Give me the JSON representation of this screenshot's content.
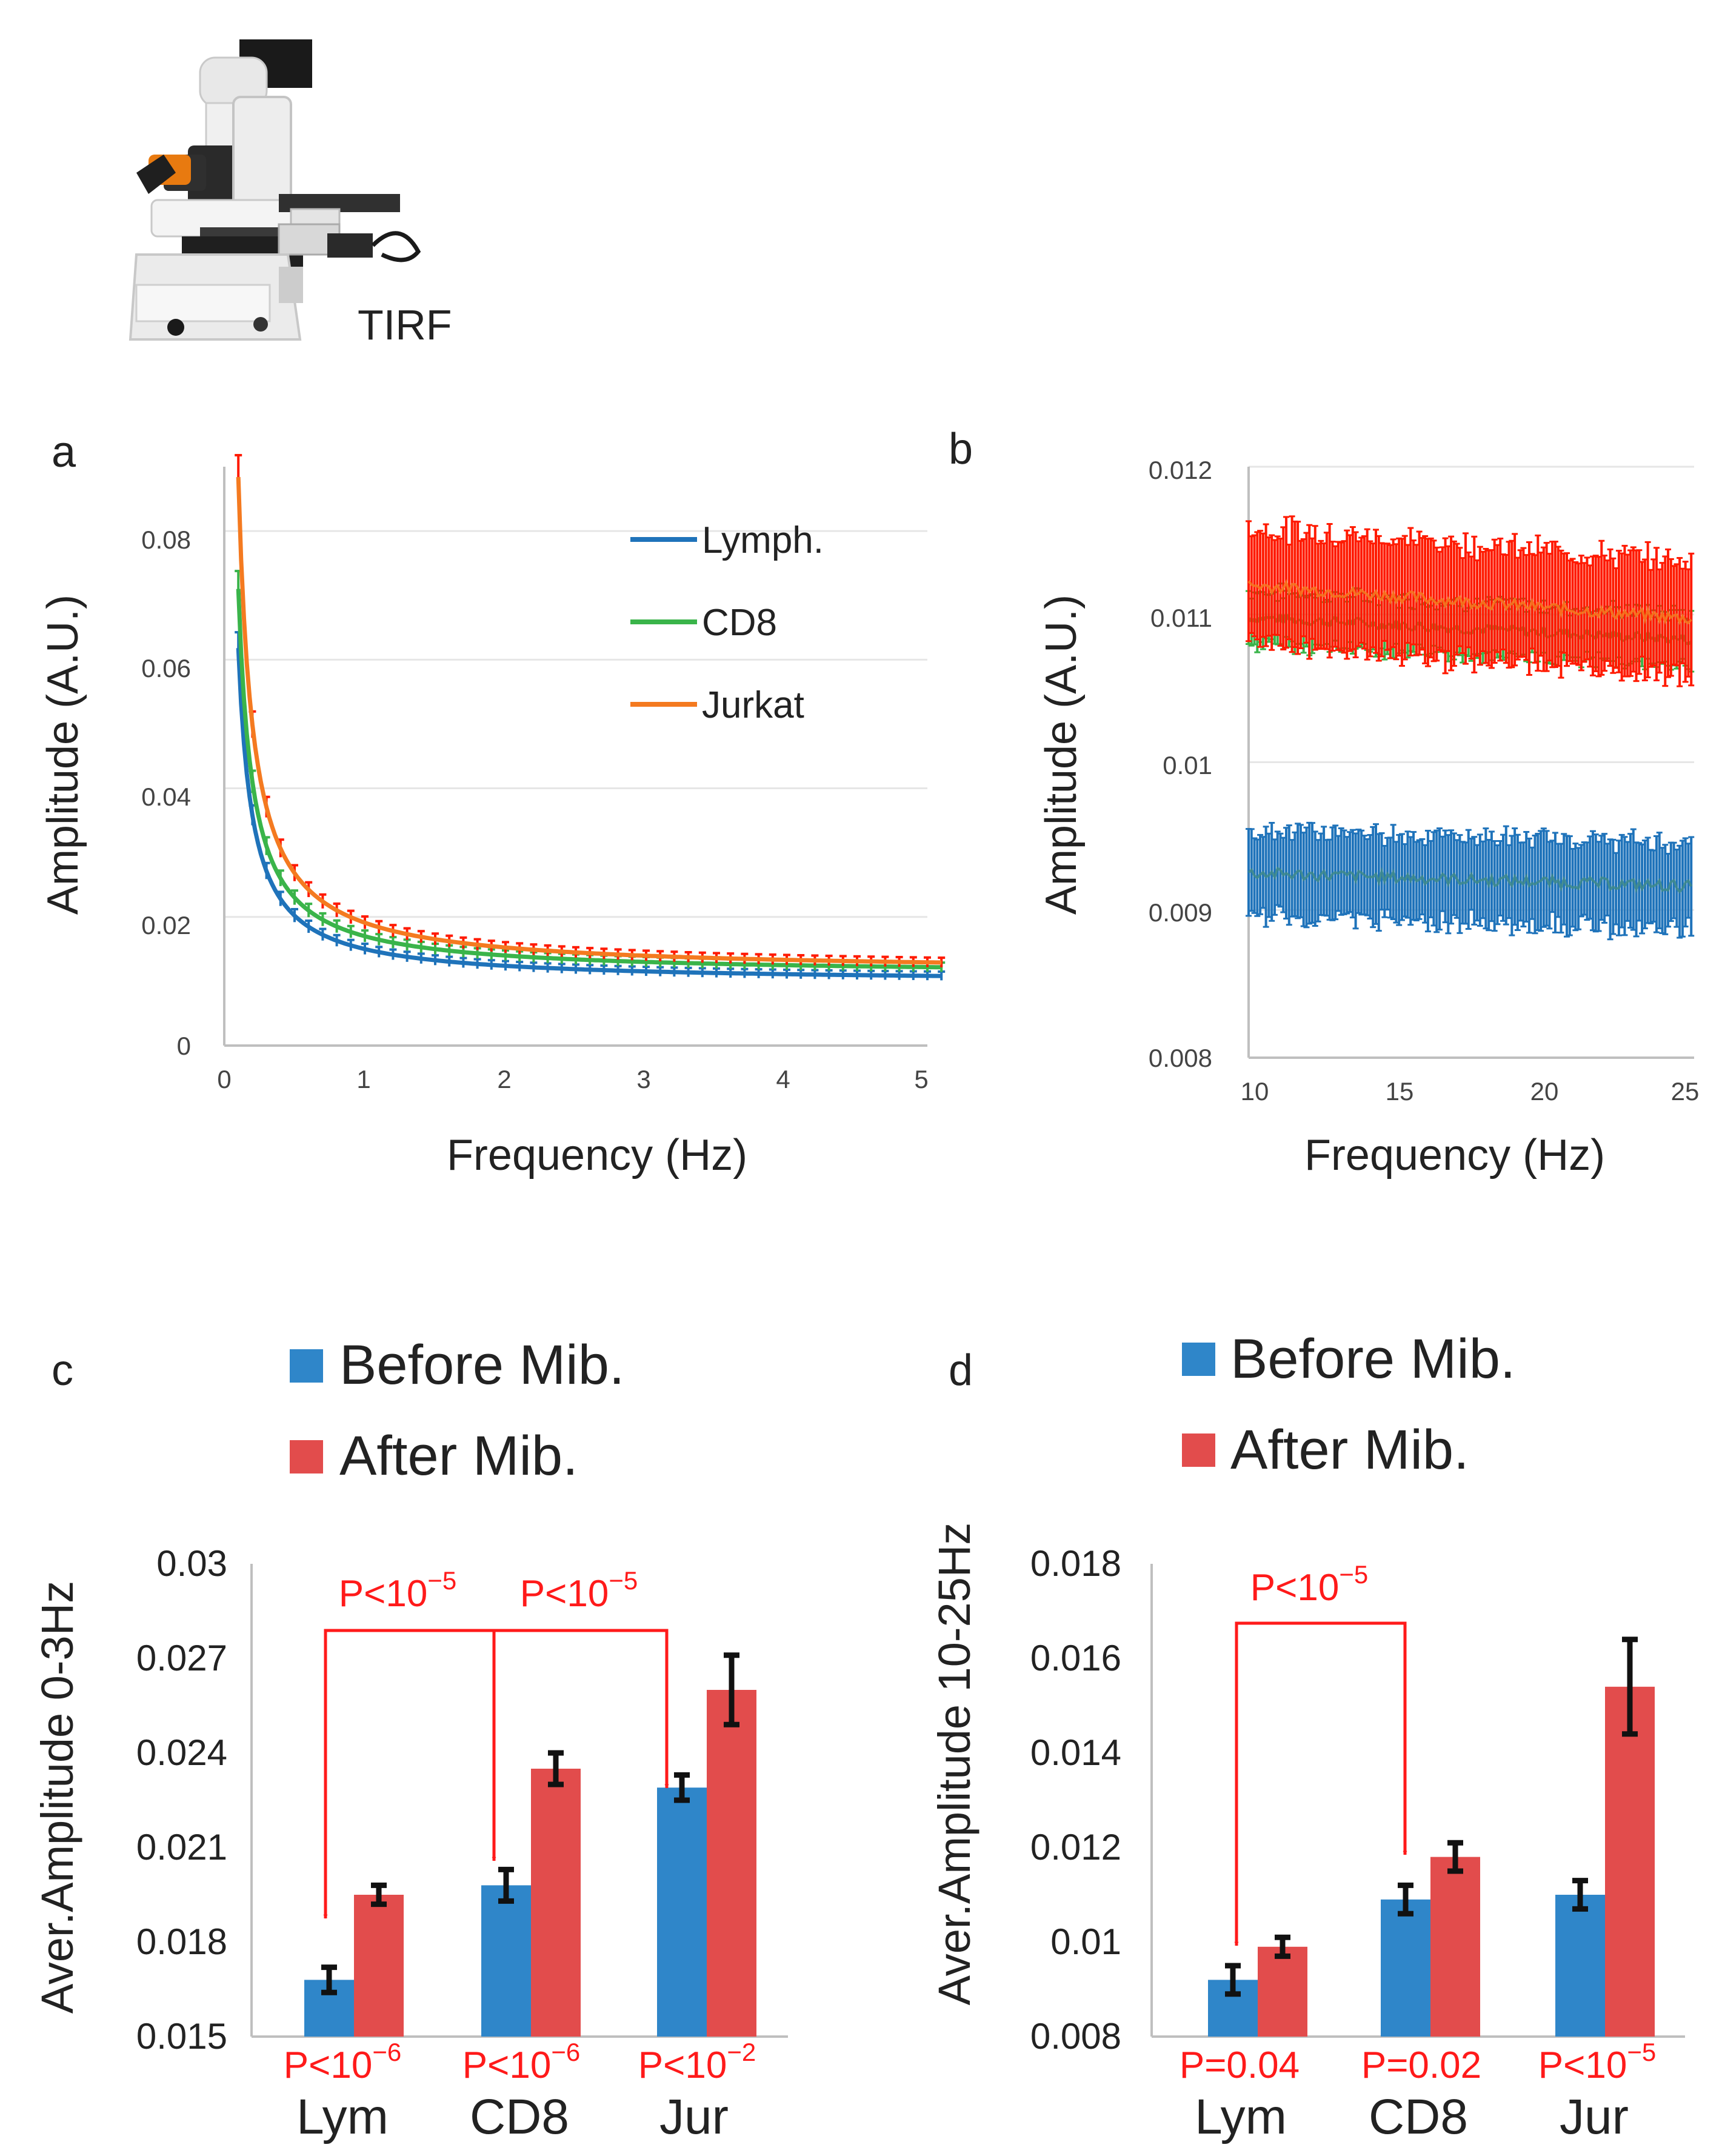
{
  "header": {
    "instrument_label": "TIRF"
  },
  "colors": {
    "lymph": "#1F73BA",
    "cd8": "#3AB44A",
    "jurkat": "#F47A20",
    "jurkat_err": "#FF1A00",
    "before": "#2F86C9",
    "after": "#E24C4C",
    "arrow": "#FF1A1A",
    "axis": "#BFBFBF",
    "text": "#222222"
  },
  "chart_data": [
    {
      "panel": "a",
      "type": "line",
      "xlabel": "Frequency (Hz)",
      "ylabel": "Amplitude (A.U.)",
      "xlim": [
        0,
        5
      ],
      "ylim": [
        0,
        0.09
      ],
      "xticks": [
        0,
        1,
        2,
        3,
        4,
        5
      ],
      "yticks": [
        0,
        0.02,
        0.04,
        0.06,
        0.08
      ],
      "ytick_labels": [
        "0",
        "0.02",
        "0.04",
        "0.06",
        "0.08"
      ],
      "legend_position": "top-right",
      "series": [
        {
          "name": "Lymph.",
          "color_key": "lymph",
          "base": 0.0098,
          "A": 0.0052
        },
        {
          "name": "CD8",
          "color_key": "cd8",
          "base": 0.011,
          "A": 0.006
        },
        {
          "name": "Jurkat",
          "color_key": "jurkat",
          "base": 0.0114,
          "A": 0.0077
        }
      ]
    },
    {
      "panel": "b",
      "type": "line",
      "xlabel": "Frequency (Hz)",
      "ylabel": "Amplitude (A.U.)",
      "xlim": [
        9.6,
        25
      ],
      "ylim": [
        0.008,
        0.012
      ],
      "xticks": [
        10,
        15,
        20,
        25
      ],
      "yticks": [
        0.008,
        0.009,
        0.01,
        0.011,
        0.012
      ],
      "ytick_labels": [
        "0.008",
        "0.009",
        "0.01",
        "0.011",
        "0.012"
      ],
      "series": [
        {
          "name": "Lymph.",
          "color_key": "lymph",
          "start": 0.00925,
          "end": 0.00916,
          "err": 0.0003
        },
        {
          "name": "CD8",
          "color_key": "cd8",
          "start": 0.01098,
          "end": 0.01083,
          "err": 0.00018
        },
        {
          "name": "Jurkat",
          "color_key": "jurkat",
          "start": 0.0112,
          "end": 0.01097,
          "err": 0.0004
        }
      ]
    },
    {
      "panel": "c",
      "type": "bar",
      "ylabel": "Aver.Amplitude 0-3Hz",
      "ylim": [
        0.015,
        0.03
      ],
      "yticks": [
        0.015,
        0.018,
        0.021,
        0.024,
        0.027,
        0.03
      ],
      "ytick_labels": [
        "0.015",
        "0.018",
        "0.021",
        "0.024",
        "0.027",
        "0.03"
      ],
      "categories": [
        "Lym",
        "CD8",
        "Jur"
      ],
      "legend": [
        "Before Mib.",
        "After Mib."
      ],
      "series": [
        {
          "name": "Before Mib.",
          "values": [
            0.0168,
            0.0198,
            0.0229
          ],
          "errors": [
            0.0004,
            0.0005,
            0.0004
          ]
        },
        {
          "name": "After Mib.",
          "values": [
            0.0195,
            0.0235,
            0.026
          ],
          "errors": [
            0.0003,
            0.0005,
            0.0011
          ]
        }
      ],
      "pair_pvalues": [
        {
          "base": "P<10",
          "exp": "−6"
        },
        {
          "base": "P<10",
          "exp": "−6"
        },
        {
          "base": "P<10",
          "exp": "−2"
        }
      ],
      "comparison_pvalues": [
        {
          "base": "P<10",
          "exp": "−5"
        },
        {
          "base": "P<10",
          "exp": "−5"
        }
      ]
    },
    {
      "panel": "d",
      "type": "bar",
      "ylabel": "Aver.Amplitude 10-25Hz",
      "ylim": [
        0.008,
        0.018
      ],
      "yticks": [
        0.008,
        0.01,
        0.012,
        0.014,
        0.016,
        0.018
      ],
      "ytick_labels": [
        "0.008",
        "0.01",
        "0.012",
        "0.014",
        "0.016",
        "0.018"
      ],
      "categories": [
        "Lym",
        "CD8",
        "Jur"
      ],
      "legend": [
        "Before Mib.",
        "After Mib."
      ],
      "series": [
        {
          "name": "Before Mib.",
          "values": [
            0.0092,
            0.0109,
            0.011
          ],
          "errors": [
            0.0003,
            0.0003,
            0.0003
          ]
        },
        {
          "name": "After Mib.",
          "values": [
            0.0099,
            0.0118,
            0.0154
          ],
          "errors": [
            0.0002,
            0.0003,
            0.001
          ]
        }
      ],
      "pair_pvalues": [
        {
          "base": "P=0.04",
          "exp": ""
        },
        {
          "base": "P=0.02",
          "exp": ""
        },
        {
          "base": "P<10",
          "exp": "−5"
        }
      ],
      "comparison_pvalues": [
        {
          "base": "P<10",
          "exp": "−5"
        }
      ]
    }
  ]
}
